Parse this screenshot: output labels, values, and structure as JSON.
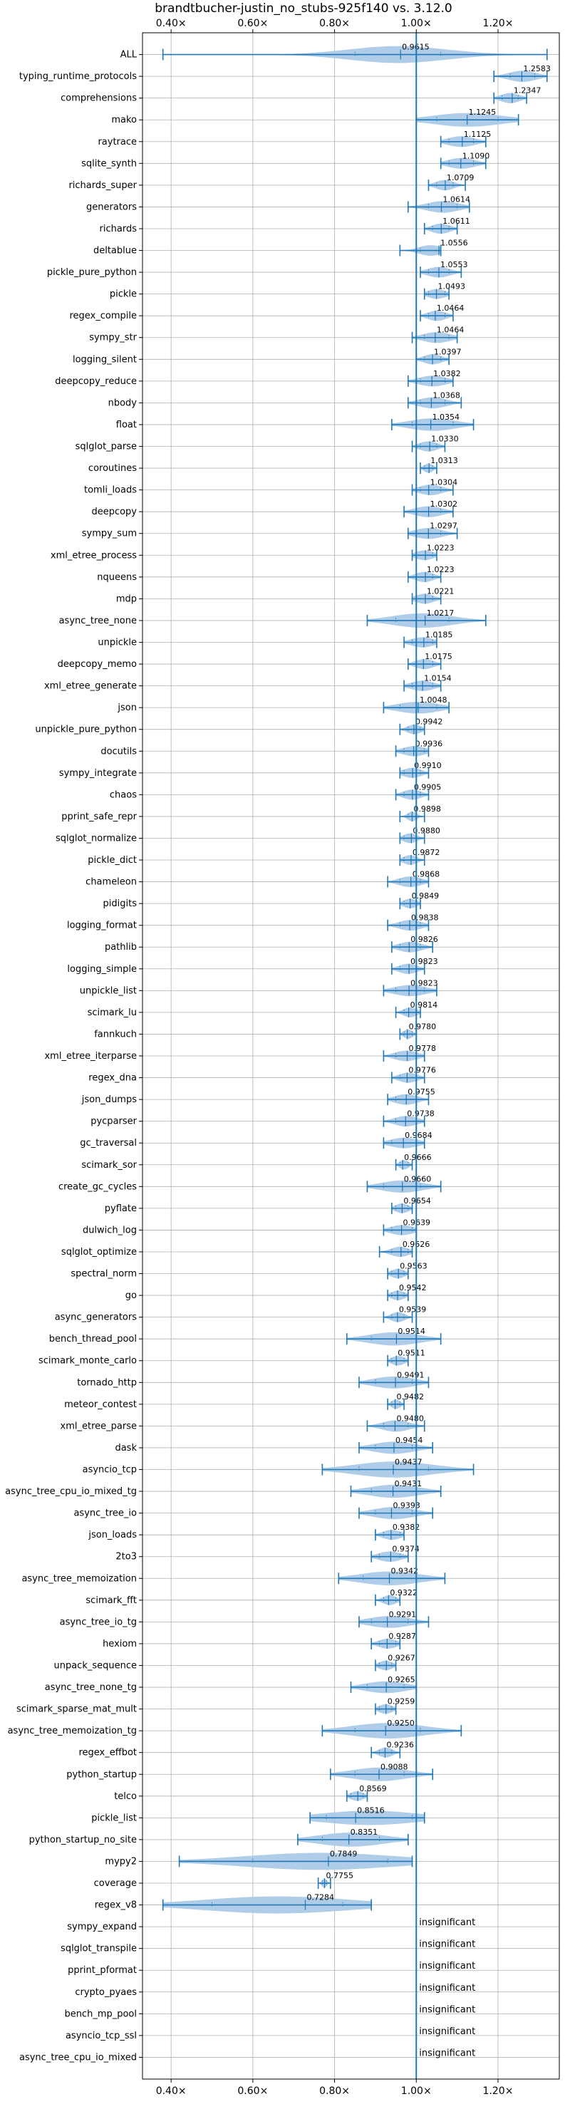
{
  "chart_data": {
    "type": "violin",
    "title": "brandtbucher-justin_no_stubs-925f140 vs. 3.12.0",
    "xlabel": "",
    "ylabel": "",
    "xlim": [
      0.33,
      1.35
    ],
    "xticks": [
      0.4,
      0.6,
      0.8,
      1.0,
      1.2
    ],
    "xtick_labels": [
      "0.40×",
      "0.60×",
      "0.80×",
      "1.00×",
      "1.20×"
    ],
    "reference_line": 1.0,
    "grid": true,
    "colors": {
      "violin": "#a6c8e6",
      "line": "#1f77b4",
      "grid": "#b0b0b0"
    },
    "insignificant_label": "insignificant",
    "rows": [
      {
        "name": "ALL",
        "value": 0.9615,
        "label": "0.9615",
        "min": 0.38,
        "max": 1.32,
        "q1": 0.85,
        "q3": 1.06
      },
      {
        "name": "typing_runtime_protocols",
        "value": 1.2583,
        "label": "1.2583",
        "min": 1.19,
        "max": 1.32,
        "q1": 1.23,
        "q3": 1.29
      },
      {
        "name": "comprehensions",
        "value": 1.2347,
        "label": "1.2347",
        "min": 1.19,
        "max": 1.27,
        "q1": 1.21,
        "q3": 1.25
      },
      {
        "name": "mako",
        "value": 1.1245,
        "label": "1.1245",
        "min": 1.0,
        "max": 1.25,
        "q1": 1.05,
        "q3": 1.2
      },
      {
        "name": "raytrace",
        "value": 1.1125,
        "label": "1.1125",
        "min": 1.06,
        "max": 1.17,
        "q1": 1.08,
        "q3": 1.14
      },
      {
        "name": "sqlite_synth",
        "value": 1.109,
        "label": "1.1090",
        "min": 1.06,
        "max": 1.17,
        "q1": 1.08,
        "q3": 1.14
      },
      {
        "name": "richards_super",
        "value": 1.0709,
        "label": "1.0709",
        "min": 1.03,
        "max": 1.12,
        "q1": 1.05,
        "q3": 1.09
      },
      {
        "name": "generators",
        "value": 1.0614,
        "label": "1.0614",
        "min": 0.98,
        "max": 1.13,
        "q1": 1.03,
        "q3": 1.1
      },
      {
        "name": "richards",
        "value": 1.0611,
        "label": "1.0611",
        "min": 1.02,
        "max": 1.1,
        "q1": 1.04,
        "q3": 1.08
      },
      {
        "name": "deltablue",
        "value": 1.0556,
        "label": "1.0556",
        "min": 0.96,
        "max": 1.06,
        "q1": 1.01,
        "q3": 1.06
      },
      {
        "name": "pickle_pure_python",
        "value": 1.0553,
        "label": "1.0553",
        "min": 1.01,
        "max": 1.11,
        "q1": 1.03,
        "q3": 1.08
      },
      {
        "name": "pickle",
        "value": 1.0493,
        "label": "1.0493",
        "min": 1.02,
        "max": 1.08,
        "q1": 1.03,
        "q3": 1.07
      },
      {
        "name": "regex_compile",
        "value": 1.0464,
        "label": "1.0464",
        "min": 1.01,
        "max": 1.09,
        "q1": 1.03,
        "q3": 1.07
      },
      {
        "name": "sympy_str",
        "value": 1.0464,
        "label": "1.0464",
        "min": 0.99,
        "max": 1.1,
        "q1": 1.02,
        "q3": 1.08
      },
      {
        "name": "logging_silent",
        "value": 1.0397,
        "label": "1.0397",
        "min": 1.0,
        "max": 1.08,
        "q1": 1.02,
        "q3": 1.06
      },
      {
        "name": "deepcopy_reduce",
        "value": 1.0382,
        "label": "1.0382",
        "min": 0.98,
        "max": 1.09,
        "q1": 1.01,
        "q3": 1.07
      },
      {
        "name": "nbody",
        "value": 1.0368,
        "label": "1.0368",
        "min": 0.98,
        "max": 1.11,
        "q1": 1.01,
        "q3": 1.07
      },
      {
        "name": "float",
        "value": 1.0354,
        "label": "1.0354",
        "min": 0.94,
        "max": 1.14,
        "q1": 0.99,
        "q3": 1.09
      },
      {
        "name": "sqlglot_parse",
        "value": 1.033,
        "label": "1.0330",
        "min": 0.99,
        "max": 1.07,
        "q1": 1.01,
        "q3": 1.05
      },
      {
        "name": "coroutines",
        "value": 1.0313,
        "label": "1.0313",
        "min": 1.01,
        "max": 1.05,
        "q1": 1.02,
        "q3": 1.04
      },
      {
        "name": "tomli_loads",
        "value": 1.0304,
        "label": "1.0304",
        "min": 0.99,
        "max": 1.09,
        "q1": 1.01,
        "q3": 1.06
      },
      {
        "name": "deepcopy",
        "value": 1.0302,
        "label": "1.0302",
        "min": 0.97,
        "max": 1.09,
        "q1": 1.0,
        "q3": 1.06
      },
      {
        "name": "sympy_sum",
        "value": 1.0297,
        "label": "1.0297",
        "min": 0.98,
        "max": 1.1,
        "q1": 1.0,
        "q3": 1.06
      },
      {
        "name": "xml_etree_process",
        "value": 1.0223,
        "label": "1.0223",
        "min": 0.99,
        "max": 1.05,
        "q1": 1.0,
        "q3": 1.04
      },
      {
        "name": "nqueens",
        "value": 1.0223,
        "label": "1.0223",
        "min": 0.98,
        "max": 1.06,
        "q1": 1.0,
        "q3": 1.04
      },
      {
        "name": "mdp",
        "value": 1.0221,
        "label": "1.0221",
        "min": 0.99,
        "max": 1.06,
        "q1": 1.0,
        "q3": 1.04
      },
      {
        "name": "async_tree_none",
        "value": 1.0217,
        "label": "1.0217",
        "min": 0.88,
        "max": 1.17,
        "q1": 0.95,
        "q3": 1.08
      },
      {
        "name": "unpickle",
        "value": 1.0185,
        "label": "1.0185",
        "min": 0.97,
        "max": 1.05,
        "q1": 0.99,
        "q3": 1.04
      },
      {
        "name": "deepcopy_memo",
        "value": 1.0175,
        "label": "1.0175",
        "min": 0.98,
        "max": 1.06,
        "q1": 1.0,
        "q3": 1.04
      },
      {
        "name": "xml_etree_generate",
        "value": 1.0154,
        "label": "1.0154",
        "min": 0.97,
        "max": 1.06,
        "q1": 0.99,
        "q3": 1.04
      },
      {
        "name": "json",
        "value": 1.0048,
        "label": "1.0048",
        "min": 0.92,
        "max": 1.08,
        "q1": 0.96,
        "q3": 1.05
      },
      {
        "name": "unpickle_pure_python",
        "value": 0.9942,
        "label": "0.9942",
        "min": 0.96,
        "max": 1.02,
        "q1": 0.98,
        "q3": 1.01
      },
      {
        "name": "docutils",
        "value": 0.9936,
        "label": "0.9936",
        "min": 0.95,
        "max": 1.03,
        "q1": 0.97,
        "q3": 1.02
      },
      {
        "name": "sympy_integrate",
        "value": 0.991,
        "label": "0.9910",
        "min": 0.96,
        "max": 1.03,
        "q1": 0.97,
        "q3": 1.01
      },
      {
        "name": "chaos",
        "value": 0.9905,
        "label": "0.9905",
        "min": 0.95,
        "max": 1.03,
        "q1": 0.97,
        "q3": 1.01
      },
      {
        "name": "pprint_safe_repr",
        "value": 0.9898,
        "label": "0.9898",
        "min": 0.96,
        "max": 1.02,
        "q1": 0.98,
        "q3": 1.0
      },
      {
        "name": "sqlglot_normalize",
        "value": 0.988,
        "label": "0.9880",
        "min": 0.96,
        "max": 1.02,
        "q1": 0.97,
        "q3": 1.0
      },
      {
        "name": "pickle_dict",
        "value": 0.9872,
        "label": "0.9872",
        "min": 0.96,
        "max": 1.02,
        "q1": 0.97,
        "q3": 1.0
      },
      {
        "name": "chameleon",
        "value": 0.9868,
        "label": "0.9868",
        "min": 0.93,
        "max": 1.03,
        "q1": 0.96,
        "q3": 1.01
      },
      {
        "name": "pidigits",
        "value": 0.9849,
        "label": "0.9849",
        "min": 0.96,
        "max": 1.01,
        "q1": 0.97,
        "q3": 1.0
      },
      {
        "name": "logging_format",
        "value": 0.9838,
        "label": "0.9838",
        "min": 0.93,
        "max": 1.03,
        "q1": 0.96,
        "q3": 1.01
      },
      {
        "name": "pathlib",
        "value": 0.9826,
        "label": "0.9826",
        "min": 0.94,
        "max": 1.04,
        "q1": 0.96,
        "q3": 1.01
      },
      {
        "name": "logging_simple",
        "value": 0.9823,
        "label": "0.9823",
        "min": 0.94,
        "max": 1.02,
        "q1": 0.96,
        "q3": 1.0
      },
      {
        "name": "unpickle_list",
        "value": 0.9823,
        "label": "0.9823",
        "min": 0.92,
        "max": 1.05,
        "q1": 0.95,
        "q3": 1.02
      },
      {
        "name": "scimark_lu",
        "value": 0.9814,
        "label": "0.9814",
        "min": 0.95,
        "max": 1.01,
        "q1": 0.97,
        "q3": 1.0
      },
      {
        "name": "fannkuch",
        "value": 0.978,
        "label": "0.9780",
        "min": 0.96,
        "max": 1.0,
        "q1": 0.97,
        "q3": 0.99
      },
      {
        "name": "xml_etree_iterparse",
        "value": 0.9778,
        "label": "0.9778",
        "min": 0.92,
        "max": 1.02,
        "q1": 0.95,
        "q3": 1.0
      },
      {
        "name": "regex_dna",
        "value": 0.9776,
        "label": "0.9776",
        "min": 0.94,
        "max": 1.02,
        "q1": 0.96,
        "q3": 1.0
      },
      {
        "name": "json_dumps",
        "value": 0.9755,
        "label": "0.9755",
        "min": 0.93,
        "max": 1.03,
        "q1": 0.95,
        "q3": 1.0
      },
      {
        "name": "pycparser",
        "value": 0.9738,
        "label": "0.9738",
        "min": 0.92,
        "max": 1.02,
        "q1": 0.95,
        "q3": 1.0
      },
      {
        "name": "gc_traversal",
        "value": 0.9684,
        "label": "0.9684",
        "min": 0.92,
        "max": 1.02,
        "q1": 0.94,
        "q3": 1.0
      },
      {
        "name": "scimark_sor",
        "value": 0.9666,
        "label": "0.9666",
        "min": 0.95,
        "max": 0.99,
        "q1": 0.96,
        "q3": 0.98
      },
      {
        "name": "create_gc_cycles",
        "value": 0.966,
        "label": "0.9660",
        "min": 0.88,
        "max": 1.06,
        "q1": 0.92,
        "q3": 1.01
      },
      {
        "name": "pyflate",
        "value": 0.9654,
        "label": "0.9654",
        "min": 0.94,
        "max": 0.99,
        "q1": 0.95,
        "q3": 0.98
      },
      {
        "name": "dulwich_log",
        "value": 0.9639,
        "label": "0.9639",
        "min": 0.92,
        "max": 1.0,
        "q1": 0.94,
        "q3": 0.99
      },
      {
        "name": "sqlglot_optimize",
        "value": 0.9626,
        "label": "0.9626",
        "min": 0.91,
        "max": 0.99,
        "q1": 0.94,
        "q3": 0.98
      },
      {
        "name": "spectral_norm",
        "value": 0.9563,
        "label": "0.9563",
        "min": 0.93,
        "max": 0.98,
        "q1": 0.94,
        "q3": 0.97
      },
      {
        "name": "go",
        "value": 0.9542,
        "label": "0.9542",
        "min": 0.93,
        "max": 0.98,
        "q1": 0.94,
        "q3": 0.97
      },
      {
        "name": "async_generators",
        "value": 0.9539,
        "label": "0.9539",
        "min": 0.92,
        "max": 0.99,
        "q1": 0.94,
        "q3": 0.97
      },
      {
        "name": "bench_thread_pool",
        "value": 0.9514,
        "label": "0.9514",
        "min": 0.83,
        "max": 1.06,
        "q1": 0.89,
        "q3": 1.0
      },
      {
        "name": "scimark_monte_carlo",
        "value": 0.9511,
        "label": "0.9511",
        "min": 0.93,
        "max": 0.98,
        "q1": 0.94,
        "q3": 0.97
      },
      {
        "name": "tornado_http",
        "value": 0.9491,
        "label": "0.9491",
        "min": 0.86,
        "max": 1.03,
        "q1": 0.9,
        "q3": 0.99
      },
      {
        "name": "meteor_contest",
        "value": 0.9482,
        "label": "0.9482",
        "min": 0.93,
        "max": 0.97,
        "q1": 0.94,
        "q3": 0.96
      },
      {
        "name": "xml_etree_parse",
        "value": 0.948,
        "label": "0.9480",
        "min": 0.88,
        "max": 1.02,
        "q1": 0.92,
        "q3": 0.98
      },
      {
        "name": "dask",
        "value": 0.9454,
        "label": "0.9454",
        "min": 0.86,
        "max": 1.04,
        "q1": 0.9,
        "q3": 0.99
      },
      {
        "name": "asyncio_tcp",
        "value": 0.9437,
        "label": "0.9437",
        "min": 0.77,
        "max": 1.14,
        "q1": 0.86,
        "q3": 1.03
      },
      {
        "name": "async_tree_cpu_io_mixed_tg",
        "value": 0.9431,
        "label": "0.9431",
        "min": 0.84,
        "max": 1.06,
        "q1": 0.89,
        "q3": 1.0
      },
      {
        "name": "async_tree_io",
        "value": 0.9393,
        "label": "0.9393",
        "min": 0.86,
        "max": 1.04,
        "q1": 0.9,
        "q3": 0.99
      },
      {
        "name": "json_loads",
        "value": 0.9382,
        "label": "0.9382",
        "min": 0.9,
        "max": 0.97,
        "q1": 0.92,
        "q3": 0.96
      },
      {
        "name": "2to3",
        "value": 0.9374,
        "label": "0.9374",
        "min": 0.89,
        "max": 0.98,
        "q1": 0.91,
        "q3": 0.96
      },
      {
        "name": "async_tree_memoization",
        "value": 0.9342,
        "label": "0.9342",
        "min": 0.81,
        "max": 1.07,
        "q1": 0.87,
        "q3": 1.0
      },
      {
        "name": "scimark_fft",
        "value": 0.9322,
        "label": "0.9322",
        "min": 0.9,
        "max": 0.96,
        "q1": 0.92,
        "q3": 0.95
      },
      {
        "name": "async_tree_io_tg",
        "value": 0.9291,
        "label": "0.9291",
        "min": 0.86,
        "max": 1.03,
        "q1": 0.89,
        "q3": 0.98
      },
      {
        "name": "hexiom",
        "value": 0.9287,
        "label": "0.9287",
        "min": 0.89,
        "max": 0.96,
        "q1": 0.91,
        "q3": 0.95
      },
      {
        "name": "unpack_sequence",
        "value": 0.9267,
        "label": "0.9267",
        "min": 0.9,
        "max": 0.95,
        "q1": 0.91,
        "q3": 0.94
      },
      {
        "name": "async_tree_none_tg",
        "value": 0.9265,
        "label": "0.9265",
        "min": 0.84,
        "max": 1.0,
        "q1": 0.88,
        "q3": 0.97
      },
      {
        "name": "scimark_sparse_mat_mult",
        "value": 0.9259,
        "label": "0.9259",
        "min": 0.9,
        "max": 0.95,
        "q1": 0.91,
        "q3": 0.94
      },
      {
        "name": "async_tree_memoization_tg",
        "value": 0.925,
        "label": "0.9250",
        "min": 0.77,
        "max": 1.11,
        "q1": 0.85,
        "q3": 1.01
      },
      {
        "name": "regex_effbot",
        "value": 0.9236,
        "label": "0.9236",
        "min": 0.89,
        "max": 0.96,
        "q1": 0.91,
        "q3": 0.94
      },
      {
        "name": "python_startup",
        "value": 0.9088,
        "label": "0.9088",
        "min": 0.79,
        "max": 1.04,
        "q1": 0.85,
        "q3": 0.97
      },
      {
        "name": "telco",
        "value": 0.8569,
        "label": "0.8569",
        "min": 0.83,
        "max": 0.88,
        "q1": 0.84,
        "q3": 0.87
      },
      {
        "name": "pickle_list",
        "value": 0.8516,
        "label": "0.8516",
        "min": 0.74,
        "max": 1.02,
        "q1": 0.78,
        "q3": 0.99
      },
      {
        "name": "python_startup_no_site",
        "value": 0.8351,
        "label": "0.8351",
        "min": 0.71,
        "max": 0.98,
        "q1": 0.77,
        "q3": 0.91
      },
      {
        "name": "mypy2",
        "value": 0.7849,
        "label": "0.7849",
        "min": 0.42,
        "max": 0.99,
        "q1": 0.6,
        "q3": 0.93
      },
      {
        "name": "coverage",
        "value": 0.7755,
        "label": "0.7755",
        "min": 0.76,
        "max": 0.79,
        "q1": 0.77,
        "q3": 0.78
      },
      {
        "name": "regex_v8",
        "value": 0.7284,
        "label": "0.7284",
        "min": 0.38,
        "max": 0.89,
        "q1": 0.5,
        "q3": 0.82
      },
      {
        "name": "sympy_expand",
        "insignificant": true
      },
      {
        "name": "sqlglot_transpile",
        "insignificant": true
      },
      {
        "name": "pprint_pformat",
        "insignificant": true
      },
      {
        "name": "crypto_pyaes",
        "insignificant": true
      },
      {
        "name": "bench_mp_pool",
        "insignificant": true
      },
      {
        "name": "asyncio_tcp_ssl",
        "insignificant": true
      },
      {
        "name": "async_tree_cpu_io_mixed",
        "insignificant": true
      }
    ]
  }
}
